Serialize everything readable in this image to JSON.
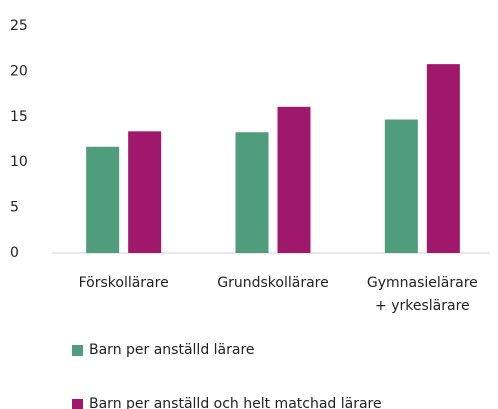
{
  "chart_data": {
    "type": "bar",
    "categories": [
      "Förskollärare",
      "Grundskollärare",
      "Gymnasielärare\n+ yrkeslärare"
    ],
    "series": [
      {
        "name": "Barn per anställd lärare",
        "color": "#4f9d7c",
        "values": [
          11.7,
          13.3,
          14.7
        ]
      },
      {
        "name": "Barn per anställd och helt matchad lärare",
        "color": "#a0186b",
        "values": [
          13.4,
          16.1,
          20.8
        ]
      }
    ],
    "ylim": [
      0,
      25
    ],
    "yticks": [
      0,
      5,
      10,
      15,
      20,
      25
    ],
    "grid": false
  }
}
